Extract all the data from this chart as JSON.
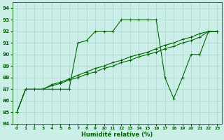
{
  "xlabel": "Humidité relative (%)",
  "bg_color": "#cceee8",
  "grid_color": "#aad4cc",
  "line_color": "#006600",
  "xlim": [
    -0.5,
    23.5
  ],
  "ylim": [
    84,
    94.5
  ],
  "yticks": [
    84,
    85,
    86,
    87,
    88,
    89,
    90,
    91,
    92,
    93,
    94
  ],
  "xticks": [
    0,
    1,
    2,
    3,
    4,
    5,
    6,
    7,
    8,
    9,
    10,
    11,
    12,
    13,
    14,
    15,
    16,
    17,
    18,
    19,
    20,
    21,
    22,
    23
  ],
  "series": [
    {
      "x": [
        0,
        1,
        2,
        3,
        4,
        5,
        6,
        7,
        8,
        9,
        10,
        11,
        12,
        13,
        14,
        15,
        16,
        17,
        18,
        19,
        20,
        21,
        22,
        23
      ],
      "y": [
        85,
        87,
        87,
        87,
        87,
        87,
        87,
        91,
        91.2,
        92,
        92,
        92,
        93,
        93,
        93,
        93,
        93,
        88,
        86.2,
        88,
        90,
        90,
        92,
        92
      ]
    },
    {
      "x": [
        0,
        1,
        2,
        3,
        4,
        5,
        6,
        7,
        8,
        9,
        10,
        11,
        12,
        13,
        14,
        15,
        16,
        17,
        18,
        19,
        20,
        21,
        22,
        23
      ],
      "y": [
        85,
        87,
        87,
        87,
        87.3,
        87.5,
        87.8,
        88.0,
        88.3,
        88.5,
        88.8,
        89.0,
        89.3,
        89.5,
        89.8,
        90.0,
        90.2,
        90.5,
        90.7,
        91.0,
        91.2,
        91.5,
        92.0,
        92.0
      ]
    },
    {
      "x": [
        0,
        1,
        2,
        3,
        4,
        5,
        6,
        7,
        8,
        9,
        10,
        11,
        12,
        13,
        14,
        15,
        16,
        17,
        18,
        19,
        20,
        21,
        22,
        23
      ],
      "y": [
        85,
        87,
        87,
        87,
        87.4,
        87.6,
        87.9,
        88.2,
        88.5,
        88.8,
        89.0,
        89.3,
        89.5,
        89.8,
        90.0,
        90.2,
        90.5,
        90.8,
        91.0,
        91.3,
        91.5,
        91.8,
        92.0,
        92.0
      ]
    }
  ]
}
